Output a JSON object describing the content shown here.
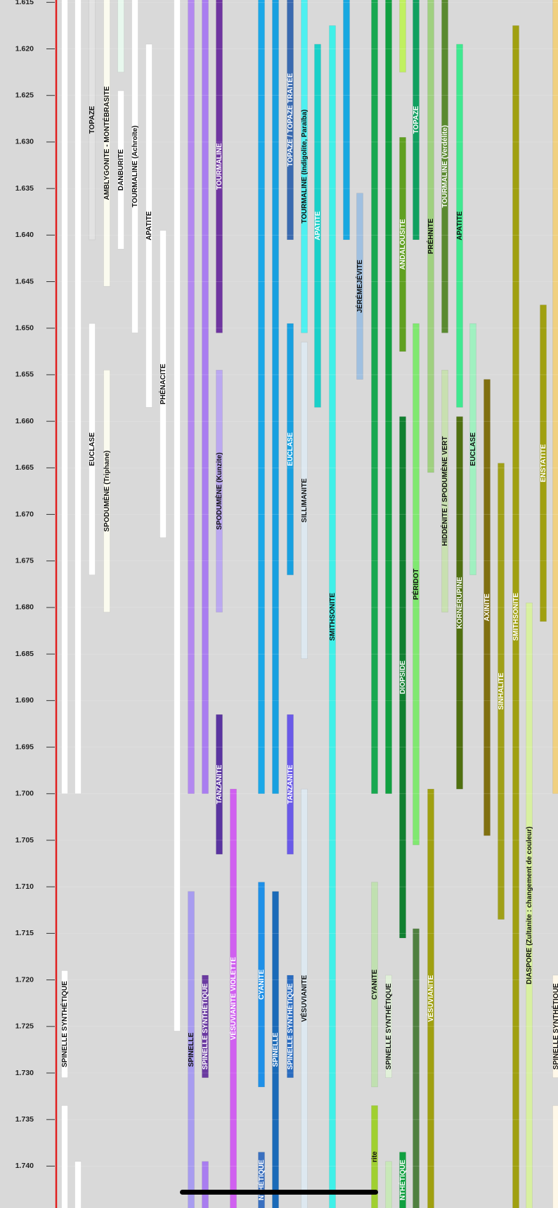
{
  "chart_data": {
    "type": "range",
    "ylim": [
      1.61475,
      1.7445
    ],
    "yticks": [
      1.615,
      {
        "value": 1.62,
        "label": "1.620"
      },
      1.625,
      {
        "value": 1.63,
        "label": "1.630"
      },
      1.635,
      {
        "value": 1.64,
        "label": "1.640"
      },
      1.645,
      {
        "value": 1.65,
        "label": "1.650"
      },
      1.655,
      {
        "value": 1.66,
        "label": "1.660"
      },
      1.665,
      {
        "value": 1.67,
        "label": "1.670"
      },
      1.675,
      {
        "value": 1.68,
        "label": "1.680"
      },
      1.685,
      {
        "value": 1.69,
        "label": "1.690"
      },
      1.695,
      {
        "value": 1.7,
        "label": "1.700"
      },
      1.705,
      {
        "value": 1.71,
        "label": "1.710"
      },
      1.715,
      {
        "value": 1.72,
        "label": "1.720"
      },
      1.725,
      {
        "value": 1.73,
        "label": "1.730"
      },
      1.735,
      {
        "value": 1.74,
        "label": "1.740"
      }
    ],
    "grid": true,
    "columns": [
      [
        {
          "color": "#ffffff",
          "values": [
            1.614,
            1.7
          ]
        },
        {
          "name": "SPINELLE SYNTHÉTIQUE",
          "color": "#ffffff",
          "values": [
            1.719,
            1.7305
          ]
        },
        {
          "color": "#ffffff",
          "values": [
            1.7335,
            1.746
          ]
        }
      ],
      [
        {
          "color": "#ffffff",
          "values": [
            1.614,
            1.7
          ]
        },
        {
          "color": "#ffffff",
          "values": [
            1.7395,
            1.746
          ]
        }
      ],
      [
        {
          "name": "TOPAZE",
          "color": "#e2e2e2",
          "values": [
            1.614,
            1.6405
          ]
        },
        {
          "name": "EUCLASE",
          "color": "#ffffff",
          "values": [
            1.6495,
            1.6765
          ]
        }
      ],
      [
        {
          "name": "AMBLYGONITE - MONTÉBRASITE",
          "color": "#fbfbef",
          "values": [
            1.614,
            1.6455
          ]
        },
        {
          "name": "SPODUMÈNE (Triphane)",
          "color": "#fbfbef",
          "values": [
            1.6545,
            1.6805
          ]
        }
      ],
      [
        {
          "color": "#e8f8ee",
          "values": [
            1.614,
            1.6225
          ]
        },
        {
          "name": "DANBURITE",
          "color": "#ffffff",
          "values": [
            1.6245,
            1.6415
          ]
        }
      ],
      [
        {
          "name": "TOURMALINE (Achroïte)",
          "color": "#ffffff",
          "values": [
            1.614,
            1.6505
          ]
        }
      ],
      [
        {
          "name": "APATITE",
          "color": "#ffffff",
          "values": [
            1.6195,
            1.6585
          ]
        }
      ],
      [
        {
          "name": "PHÉNACITE",
          "color": "#ffffff",
          "values": [
            1.6395,
            1.6725
          ]
        }
      ],
      [
        {
          "color": "#ffffff",
          "values": [
            1.614,
            1.7255
          ]
        }
      ],
      [
        {
          "color": "#b388f0",
          "values": [
            1.614,
            1.7
          ]
        },
        {
          "name": "SPINELLE",
          "color": "#a89cf0",
          "values": [
            1.7105,
            1.746
          ]
        }
      ],
      [
        {
          "color": "#a97df0",
          "values": [
            1.614,
            1.7
          ]
        },
        {
          "name": "SPINELLE SYNTHÉTIQUE",
          "color": "#6a3aa0",
          "values": [
            1.7195,
            1.7305
          ]
        },
        {
          "color": "#a97df0",
          "values": [
            1.7395,
            1.746
          ]
        }
      ],
      [
        {
          "name": "TOURMALINE",
          "color": "#6f35a0",
          "values": [
            1.614,
            1.6505
          ]
        },
        {
          "name": "SPODUMÈNE (Kunzite)",
          "color": "#bba8f0",
          "values": [
            1.6545,
            1.6805
          ]
        },
        {
          "name": "TANZANITE",
          "color": "#5a34a0",
          "values": [
            1.6915,
            1.7065
          ]
        }
      ],
      [
        {
          "name": "VÉSUVIANITE VIOLETTE",
          "color": "#d060f0",
          "values": [
            1.6995,
            1.746
          ]
        }
      ],
      [
        {
          "color": "#1aa8e8",
          "values": [
            1.614,
            1.7
          ]
        },
        {
          "name": "CYANITE",
          "color": "#1e90e8",
          "values": [
            1.7095,
            1.7315
          ]
        },
        {
          "name": "NTHÉTIQUE",
          "color": "#3a70c0",
          "values": [
            1.7385,
            1.746
          ]
        }
      ],
      [
        {
          "color": "#18a0e0",
          "values": [
            1.614,
            1.7
          ]
        },
        {
          "name": "SPINELLE",
          "color": "#1a6ab8",
          "values": [
            1.7105,
            1.746
          ]
        }
      ],
      [
        {
          "name": "TOPAZE / TOPAZE TRAITÉE",
          "color": "#3a6ab0",
          "values": [
            1.614,
            1.6405
          ]
        },
        {
          "name": "EUCLASE",
          "color": "#18a0e0",
          "values": [
            1.6495,
            1.6765
          ]
        },
        {
          "name": "TANZANITE",
          "color": "#6a5ae8",
          "values": [
            1.6915,
            1.7065
          ]
        },
        {
          "name": "SPINELLE SYNTHÉTIQUE",
          "color": "#2a6cc0",
          "values": [
            1.7195,
            1.7305
          ]
        }
      ],
      [
        {
          "name": "TOURMALINE (Indigolite, Paraïba)",
          "color": "#4ef0f0",
          "values": [
            1.614,
            1.6505
          ]
        },
        {
          "name": "SILLIMANITE",
          "color": "#dde8f0",
          "values": [
            1.6515,
            1.6855
          ]
        },
        {
          "name": "VÉSUVIANITE",
          "color": "#dde8f0",
          "values": [
            1.6995,
            1.746
          ]
        }
      ],
      [
        {
          "name": "APATITE",
          "color": "#1ad0c8",
          "values": [
            1.6195,
            1.6585
          ]
        }
      ],
      [
        {
          "name": "SMITHSONITE",
          "color": "#40f0e8",
          "values": [
            1.6175,
            1.746
          ]
        }
      ],
      [
        {
          "color": "#18a8e0",
          "values": [
            1.614,
            1.6405
          ]
        }
      ],
      [
        {
          "name": "JÉRÉMEJÉVITE",
          "color": "#a0c0e0",
          "values": [
            1.6355,
            1.6555
          ]
        }
      ],
      [
        {
          "color": "#18a850",
          "values": [
            1.614,
            1.7
          ]
        },
        {
          "name": "CYANITE",
          "color": "#c0e0b0",
          "values": [
            1.7095,
            1.7315
          ]
        },
        {
          "name": "rite",
          "color": "#a0d030",
          "values": [
            1.7335,
            1.746
          ]
        }
      ],
      [
        {
          "color": "#10a040",
          "values": [
            1.614,
            1.7
          ]
        },
        {
          "name": "SPINELLE SYNTHÉTIQUE",
          "color": "#e0f0d8",
          "values": [
            1.7195,
            1.7305
          ]
        },
        {
          "color": "#c8e8b8",
          "values": [
            1.7395,
            1.746
          ]
        }
      ],
      [
        {
          "color": "#c0f060",
          "values": [
            1.614,
            1.6225
          ]
        },
        {
          "name": "ANDALOUSITE",
          "color": "#60a020",
          "values": [
            1.6295,
            1.6525
          ]
        },
        {
          "name": "DIOPSIDE",
          "color": "#108030",
          "values": [
            1.6595,
            1.7155
          ]
        },
        {
          "name": "NTHÉTIQUE",
          "color": "#10a040",
          "values": [
            1.7385,
            1.746
          ]
        }
      ],
      [
        {
          "name": "TOPAZE",
          "color": "#10a060",
          "values": [
            1.614,
            1.6405
          ]
        },
        {
          "name": "PÉRIDOT",
          "color": "#80e870",
          "values": [
            1.6495,
            1.7055
          ]
        },
        {
          "color": "#508040",
          "values": [
            1.7145,
            1.746
          ]
        }
      ],
      [
        {
          "name": "PRÉHNITE",
          "color": "#a0d080",
          "values": [
            1.614,
            1.6655
          ]
        },
        {
          "name": "VÉSUVIANITE",
          "color": "#a0a010",
          "values": [
            1.6995,
            1.746
          ]
        }
      ],
      [
        {
          "name": "TOURMALINE (Verdélite)",
          "color": "#5a8a30",
          "values": [
            1.614,
            1.6505
          ]
        },
        {
          "name": "HIDDÉNITE / SPODUMÈNE VERT",
          "color": "#c8e0b0",
          "values": [
            1.6545,
            1.6805
          ]
        }
      ],
      [
        {
          "name": "APATITE",
          "color": "#40e890",
          "values": [
            1.6195,
            1.6585
          ]
        },
        {
          "name": "KORNÉRUPINE",
          "color": "#507010",
          "values": [
            1.6595,
            1.6995
          ]
        }
      ],
      [
        {
          "name": "EUCLASE",
          "color": "#a0f0c0",
          "values": [
            1.6495,
            1.6765
          ]
        }
      ],
      [
        {
          "name": "AXINITE",
          "color": "#807010",
          "values": [
            1.6555,
            1.7045
          ]
        }
      ],
      [
        {
          "name": "SINHALITE",
          "color": "#a0a018",
          "values": [
            1.6645,
            1.7135
          ]
        }
      ],
      [
        {
          "name": "SMITHSONITE",
          "color": "#a0a010",
          "values": [
            1.6175,
            1.746
          ]
        }
      ],
      [
        {
          "name": "DIASPORE (Zultanite : changement de couleur)",
          "color": "#d8f0a0",
          "values": [
            1.6795,
            1.746
          ]
        }
      ],
      [
        {
          "name": "ENSTATITE",
          "color": "#a0a010",
          "values": [
            1.6475,
            1.6815
          ]
        }
      ],
      [
        {
          "color": "#f0d080",
          "values": [
            1.614,
            1.7
          ]
        },
        {
          "name": "SPINELLE SYNTHÉTIQUE",
          "color": "#fff8e8",
          "values": [
            1.7195,
            1.7305
          ]
        },
        {
          "color": "#fff8e8",
          "values": [
            1.7335,
            1.746
          ]
        }
      ]
    ]
  }
}
